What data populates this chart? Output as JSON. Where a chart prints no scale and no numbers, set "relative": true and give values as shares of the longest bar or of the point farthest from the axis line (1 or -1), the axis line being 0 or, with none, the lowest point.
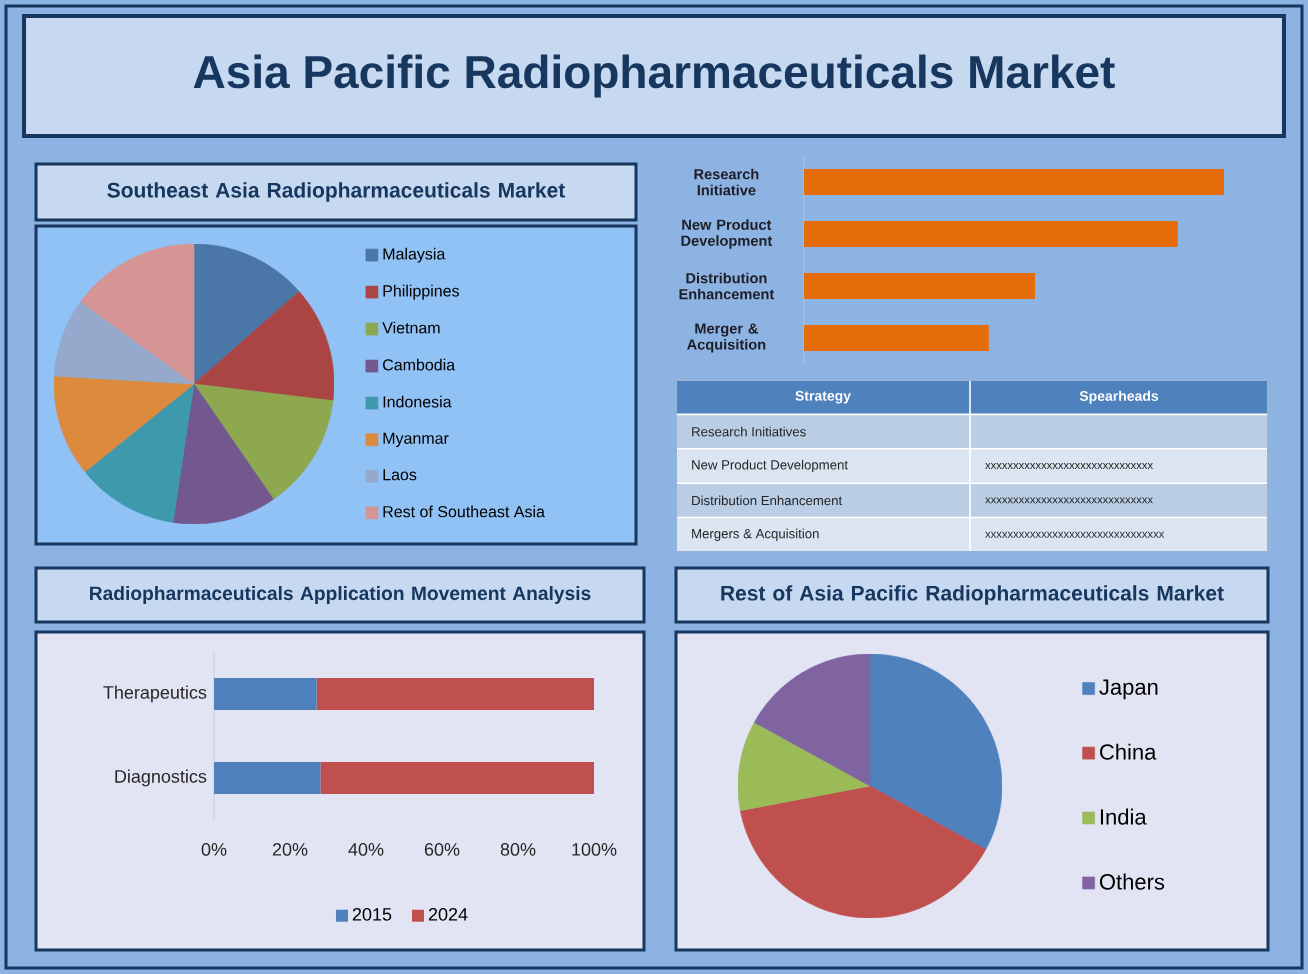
{
  "chart_data": [
    {
      "type": "other",
      "title": "Asia Pacific Radiopharmaceuticals Market"
    },
    {
      "type": "pie",
      "title": "Southeast Asia Radiopharmaceuticals Market",
      "categories": [
        "Malaysia",
        "Philippines",
        "Vietnam",
        "Cambodia",
        "Indonesia",
        "Myanmar",
        "Laos",
        "Rest of Southeast Asia"
      ],
      "values": [
        13.5,
        13.4,
        13.5,
        12,
        11.8,
        11.7,
        9.1,
        15.0
      ],
      "colors": [
        "#4a76a8",
        "#ab4543",
        "#8ea84f",
        "#73578f",
        "#3f99ad",
        "#dc8a3e",
        "#94a9cc",
        "#d59594"
      ],
      "legend": "right"
    },
    {
      "type": "bar",
      "orientation": "horizontal",
      "relative": true,
      "categories": [
        "Research Initiative",
        "New Product Development",
        "Distribution Enhancement",
        "Merger & Acquisition"
      ],
      "values": [
        1,
        0.89,
        0.55,
        0.44
      ],
      "color": "#e46c0a"
    },
    {
      "type": "other",
      "annotations": [
        "Strategy",
        "Spearheads"
      ],
      "categories": [
        "Research Initiatives",
        "New Product Development",
        "Distribution Enhancement",
        "Mergers & Acquisition"
      ],
      "value_labels": [
        null,
        "xxxxxxxxxxxxxxxxxxxxxxxxxxxxxx",
        "xxxxxxxxxxxxxxxxxxxxxxxxxxxxxx",
        "xxxxxxxxxxxxxxxxxxxxxxxxxxxxxxxx"
      ]
    },
    {
      "type": "bar",
      "orientation": "horizontal",
      "stacked": true,
      "title": "Radiopharmaceuticals Application Movement Analysis",
      "categories": [
        "Therapeutics",
        "Diagnostics"
      ],
      "series": [
        {
          "name": "2015",
          "color": "#4f81bd",
          "values": [
            27,
            28
          ]
        },
        {
          "name": "2024",
          "color": "#c0504d",
          "values": [
            73,
            72
          ]
        }
      ],
      "xlim": [
        0,
        100
      ],
      "xticks": [
        {
          "value": 0,
          "label": "0%"
        },
        {
          "value": 20,
          "label": "20%"
        },
        {
          "value": 40,
          "label": "40%"
        },
        {
          "value": 60,
          "label": "60%"
        },
        {
          "value": 80,
          "label": "80%"
        },
        {
          "value": 100,
          "label": "100%"
        }
      ],
      "legend": "bottom"
    },
    {
      "type": "pie",
      "title": "Rest of Asia Pacific Radiopharmaceuticals Market",
      "categories": [
        "Japan",
        "China",
        "India",
        "Others"
      ],
      "values": [
        33,
        39,
        11,
        17
      ],
      "colors": [
        "#4f81bd",
        "#c0504d",
        "#9bbb59",
        "#8064a2"
      ],
      "legend": "right"
    }
  ]
}
